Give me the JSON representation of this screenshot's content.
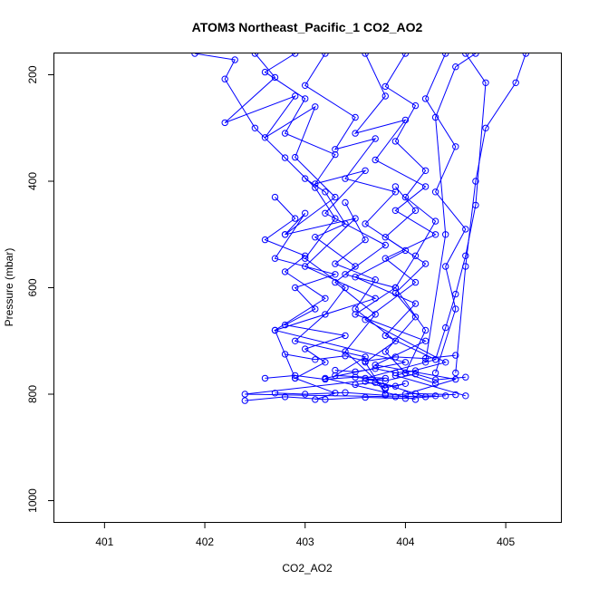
{
  "chart_data": {
    "type": "line",
    "title": "ATOM3 Northeast_Pacific_1 CO2_AO2",
    "xlabel": "CO2_AO2",
    "ylabel": "Pressure (mbar)",
    "xlim": [
      400.5,
      405.55
    ],
    "ylim": [
      1040,
      160
    ],
    "y_reversed": true,
    "x_ticks": [
      401,
      402,
      403,
      404,
      405
    ],
    "x_tick_labels": [
      "401",
      "402",
      "403",
      "404",
      "405"
    ],
    "y_ticks": [
      200,
      400,
      600,
      800,
      1000
    ],
    "y_tick_labels": [
      "200",
      "400",
      "600",
      "800",
      "1000"
    ],
    "grid": false,
    "marker": "open-circle",
    "series_color": "#0000ff",
    "series": [
      {
        "x": [
          401.9,
          402.3,
          402.2,
          402.5,
          402.8,
          403.1,
          403.3,
          403.0,
          403.4,
          403.2,
          402.9,
          403.6,
          403.3,
          403.8,
          402.4,
          403.9,
          404.3
        ],
        "y": [
          160,
          172,
          208,
          300,
          356,
          412,
          470,
          545,
          600,
          650,
          700,
          730,
          765,
          770,
          800,
          805,
          803
        ]
      },
      {
        "x": [
          402.5,
          402.7,
          402.2,
          402.9,
          402.6,
          403.1,
          402.9,
          403.3,
          402.8,
          403.5,
          403.0,
          403.7,
          402.7,
          404.0,
          403.2,
          404.1
        ],
        "y": [
          160,
          205,
          290,
          240,
          318,
          260,
          355,
          430,
          500,
          470,
          560,
          620,
          680,
          740,
          770,
          810
        ]
      },
      {
        "x": [
          402.9,
          402.6,
          403.0,
          402.8,
          403.3,
          403.1,
          403.6,
          403.2,
          403.8,
          403.4,
          403.9,
          403.5,
          404.2,
          403.7,
          404.5,
          404.0
        ],
        "y": [
          160,
          195,
          245,
          310,
          350,
          405,
          380,
          460,
          520,
          575,
          600,
          650,
          700,
          745,
          772,
          800
        ]
      },
      {
        "x": [
          403.2,
          403.0,
          403.5,
          403.3,
          403.7,
          403.4,
          403.9,
          403.6,
          404.0,
          403.5,
          404.1,
          403.8,
          404.3,
          403.6,
          404.2
        ],
        "y": [
          160,
          220,
          280,
          340,
          320,
          395,
          420,
          480,
          530,
          580,
          630,
          690,
          735,
          770,
          805
        ]
      },
      {
        "x": [
          403.6,
          403.8,
          403.5,
          404.0,
          403.7,
          404.2,
          403.9,
          404.3,
          403.8,
          404.1,
          403.6,
          404.4,
          403.9,
          404.6
        ],
        "y": [
          160,
          240,
          310,
          285,
          360,
          410,
          455,
          500,
          545,
          590,
          660,
          740,
          765,
          803
        ]
      },
      {
        "x": [
          404.0,
          403.8,
          404.1,
          403.9,
          404.2,
          404.0,
          404.3,
          404.1,
          403.9,
          404.2,
          404.0,
          404.3
        ],
        "y": [
          160,
          222,
          258,
          325,
          380,
          430,
          475,
          540,
          600,
          680,
          760,
          780
        ]
      },
      {
        "x": [
          404.4,
          404.2,
          404.5,
          404.3,
          404.6,
          404.4,
          404.5,
          404.3
        ],
        "y": [
          160,
          245,
          335,
          420,
          490,
          560,
          640,
          760
        ]
      },
      {
        "x": [
          404.6,
          404.8,
          404.7,
          404.6,
          404.5,
          404.4,
          404.3
        ],
        "y": [
          160,
          215,
          445,
          540,
          612,
          675,
          735
        ]
      },
      {
        "x": [
          405.2,
          405.1,
          404.8,
          404.7,
          404.6,
          404.5
        ],
        "y": [
          160,
          215,
          300,
          400,
          560,
          760
        ]
      },
      {
        "x": [
          404.7,
          404.5,
          404.3,
          404.4,
          404.2
        ],
        "y": [
          160,
          185,
          280,
          500,
          740
        ]
      },
      {
        "x": [
          402.8,
          403.0,
          402.7,
          403.3,
          402.9,
          403.1,
          402.8,
          403.4,
          403.0,
          403.2,
          402.9,
          403.3,
          403.1
        ],
        "y": [
          500,
          460,
          545,
          575,
          600,
          640,
          670,
          690,
          715,
          740,
          770,
          798,
          810
        ]
      },
      {
        "x": [
          402.7,
          402.9,
          402.6,
          403.0,
          402.8,
          403.2,
          402.7,
          402.9
        ],
        "y": [
          430,
          470,
          510,
          540,
          570,
          620,
          680,
          770
        ]
      },
      {
        "x": [
          403.0,
          403.2,
          403.4,
          403.1,
          403.5,
          403.3,
          403.7,
          403.4,
          403.8
        ],
        "y": [
          395,
          420,
          480,
          505,
          560,
          590,
          650,
          720,
          790
        ]
      },
      {
        "x": [
          403.4,
          403.6,
          403.3,
          403.7,
          403.5,
          403.9,
          403.6,
          403.8
        ],
        "y": [
          440,
          510,
          555,
          585,
          640,
          700,
          740,
          800
        ]
      },
      {
        "x": [
          403.9,
          404.1,
          403.8,
          404.2,
          403.9,
          404.1,
          403.8,
          404.0
        ],
        "y": [
          410,
          455,
          505,
          555,
          610,
          655,
          720,
          760
        ]
      },
      {
        "x": [
          402.8,
          403.1,
          403.4,
          403.6,
          403.9,
          404.2,
          404.5
        ],
        "y": [
          725,
          735,
          728,
          738,
          730,
          733,
          727
        ]
      },
      {
        "x": [
          402.6,
          402.9,
          403.2,
          403.5,
          403.8,
          404.1,
          404.3,
          404.6
        ],
        "y": [
          770,
          765,
          772,
          768,
          775,
          762,
          773,
          768
        ]
      },
      {
        "x": [
          402.4,
          402.8,
          403.2,
          403.6,
          404.0,
          404.4
        ],
        "y": [
          812,
          805,
          810,
          806,
          808,
          803
        ]
      },
      {
        "x": [
          402.7,
          403.0,
          403.4,
          403.8,
          404.1,
          404.5
        ],
        "y": [
          798,
          800,
          797,
          802,
          799,
          801
        ]
      },
      {
        "x": [
          403.3,
          403.5,
          403.7,
          403.9,
          404.1
        ],
        "y": [
          755,
          758,
          752,
          760,
          756
        ]
      },
      {
        "x": [
          403.5,
          403.7,
          403.9,
          404.0,
          403.8,
          403.6
        ],
        "y": [
          782,
          778,
          785,
          780,
          788,
          776
        ]
      }
    ]
  }
}
